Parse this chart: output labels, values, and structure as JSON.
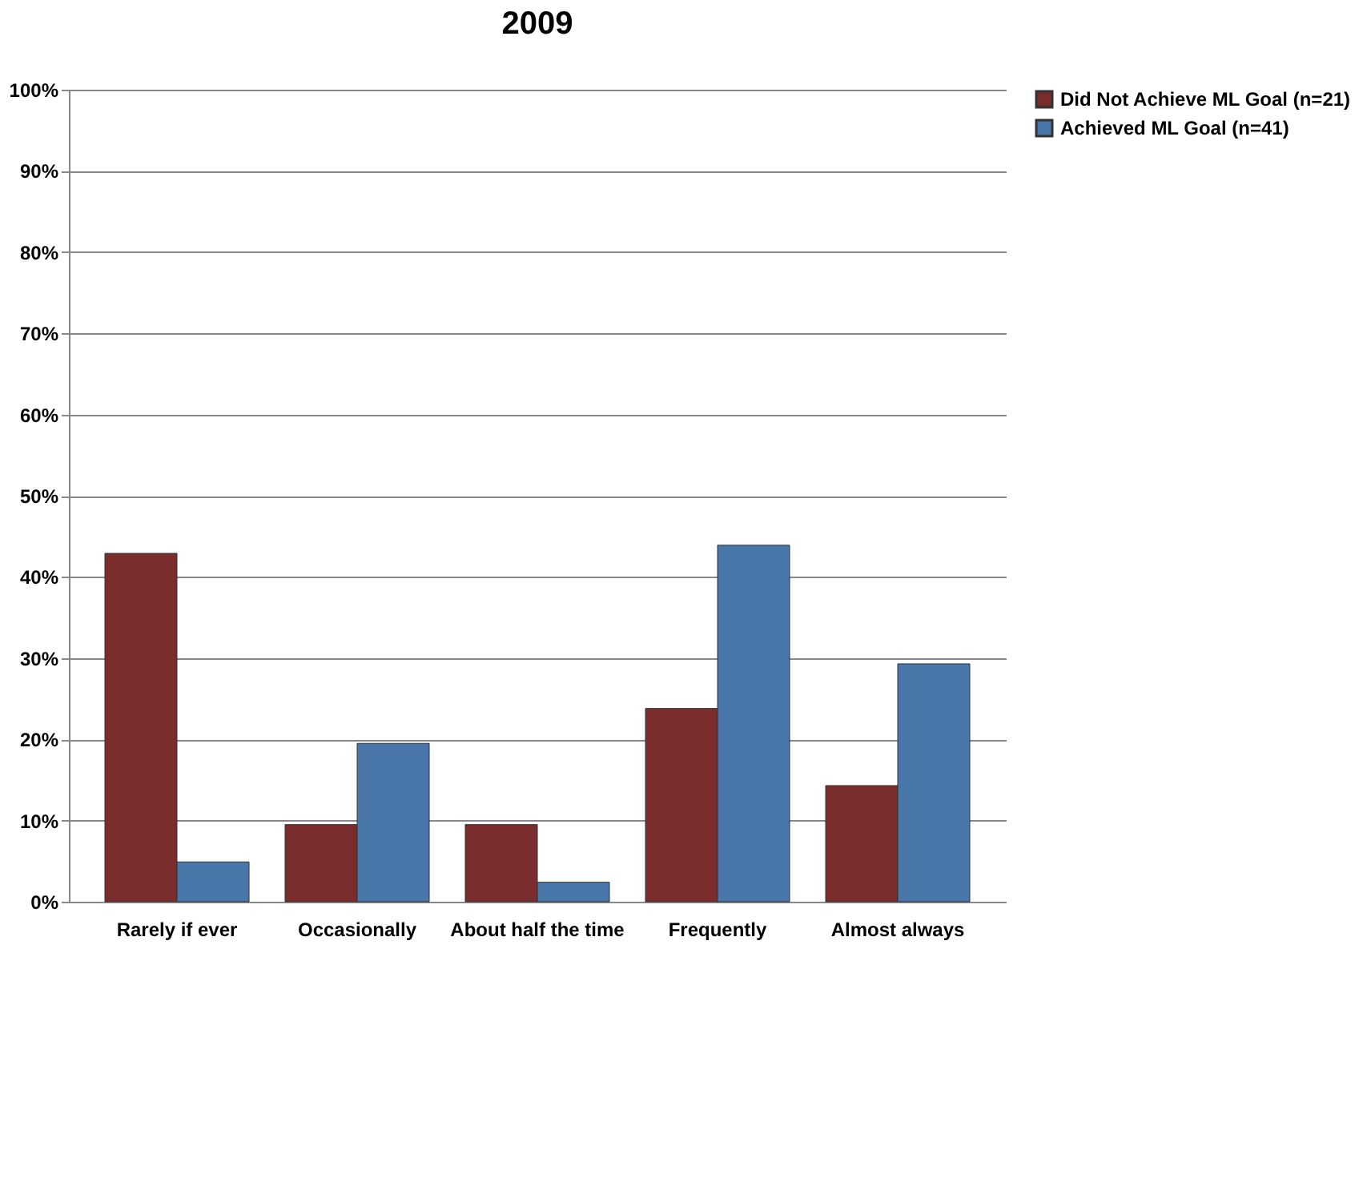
{
  "chart_data": {
    "type": "bar",
    "title": "2009",
    "categories": [
      "Rarely if ever",
      "Occasionally",
      "About half the time",
      "Frequently",
      "Almost always"
    ],
    "series": [
      {
        "name": "Did Not Achieve ML Goal (n=21)",
        "color": "#7b2c2c",
        "values": [
          42.9,
          9.5,
          9.5,
          23.8,
          14.3
        ]
      },
      {
        "name": "Achieved ML Goal (n=41)",
        "color": "#4a77aa",
        "values": [
          4.9,
          19.5,
          2.4,
          43.9,
          29.3
        ]
      }
    ],
    "ylim": [
      0,
      100
    ],
    "yticks": [
      {
        "value": 0,
        "label": "0%"
      },
      {
        "value": 10,
        "label": "10%"
      },
      {
        "value": 20,
        "label": "20%"
      },
      {
        "value": 30,
        "label": "30%"
      },
      {
        "value": 40,
        "label": "40%"
      },
      {
        "value": 50,
        "label": "50%"
      },
      {
        "value": 60,
        "label": "60%"
      },
      {
        "value": 70,
        "label": "70%"
      },
      {
        "value": 80,
        "label": "80%"
      },
      {
        "value": 90,
        "label": "90%"
      },
      {
        "value": 100,
        "label": "100%"
      }
    ],
    "grid": "y",
    "legend": "right"
  }
}
